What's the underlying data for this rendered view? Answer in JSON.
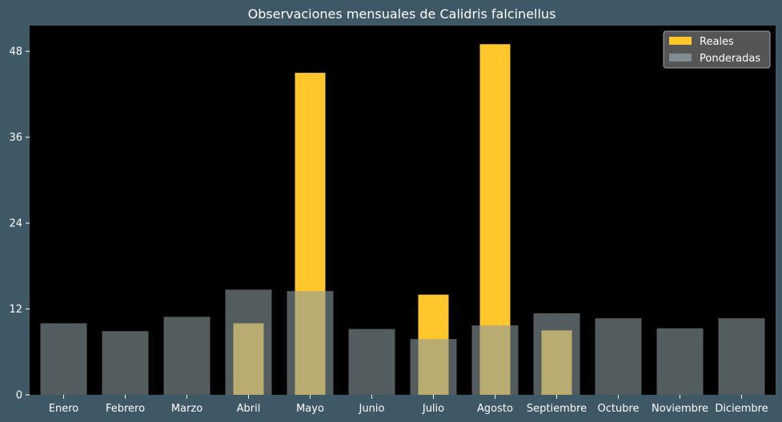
{
  "chart_data": {
    "type": "bar",
    "title": "Observaciones mensuales de Calidris falcinellus",
    "xlabel": "",
    "ylabel": "",
    "categories": [
      "Enero",
      "Febrero",
      "Marzo",
      "Abril",
      "Mayo",
      "Junio",
      "Julio",
      "Agosto",
      "Septiembre",
      "Octubre",
      "Noviembre",
      "Diciembre"
    ],
    "series": [
      {
        "name": "Reales",
        "color": "#ffc72c",
        "values": [
          0,
          0,
          0,
          10,
          45,
          0,
          14,
          49,
          9,
          0,
          0,
          0
        ]
      },
      {
        "name": "Ponderadas",
        "color": "#8a9a9f",
        "values": [
          10,
          8.9,
          10.9,
          14.7,
          14.5,
          9.2,
          7.8,
          9.7,
          11.4,
          10.7,
          9.3,
          10.7
        ]
      }
    ],
    "yticks": [
      0,
      12,
      24,
      36,
      48
    ],
    "ylim": [
      0,
      51.6
    ],
    "legend": "top-right",
    "grid": false,
    "plot_background": "#000000"
  }
}
